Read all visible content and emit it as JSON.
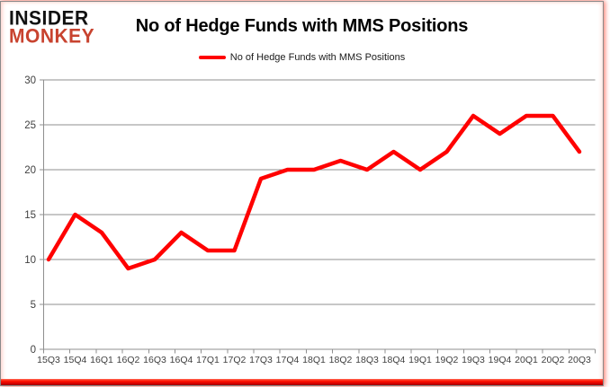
{
  "logo": {
    "line1": "INSIDER",
    "line2": "MONKEY"
  },
  "header": {
    "title": "No of Hedge Funds with MMS Positions"
  },
  "legend": {
    "label": "No of Hedge Funds with MMS Positions",
    "swatch_color": "#ff0000"
  },
  "colors": {
    "series_red": "#ff0000",
    "logo_red": "#c8432f",
    "gridline_gray": "#8f8f8f",
    "axis_label_gray": "#3f3f3f",
    "frame_border_gray": "#8a8a8a",
    "bottom_bar_red": "#d40000"
  },
  "chart_data": {
    "type": "line",
    "title": "No of Hedge Funds with MMS Positions",
    "categories": [
      "15Q3",
      "15Q4",
      "16Q1",
      "16Q2",
      "16Q3",
      "16Q4",
      "17Q1",
      "17Q2",
      "17Q3",
      "17Q4",
      "18Q1",
      "18Q2",
      "18Q3",
      "18Q4",
      "19Q1",
      "19Q2",
      "19Q3",
      "19Q4",
      "20Q1",
      "20Q2",
      "20Q3"
    ],
    "series": [
      {
        "name": "No of Hedge Funds with MMS Positions",
        "color": "#ff0000",
        "values": [
          10,
          15,
          13,
          9,
          10,
          13,
          11,
          11,
          19,
          20,
          20,
          21,
          20,
          22,
          20,
          22,
          26,
          24,
          26,
          26,
          22
        ]
      }
    ],
    "xlabel": "",
    "ylabel": "",
    "ylim": [
      0,
      30
    ],
    "yticks": [
      0,
      5,
      10,
      15,
      20,
      25,
      30
    ],
    "grid": true,
    "legend_position": "top-center"
  }
}
